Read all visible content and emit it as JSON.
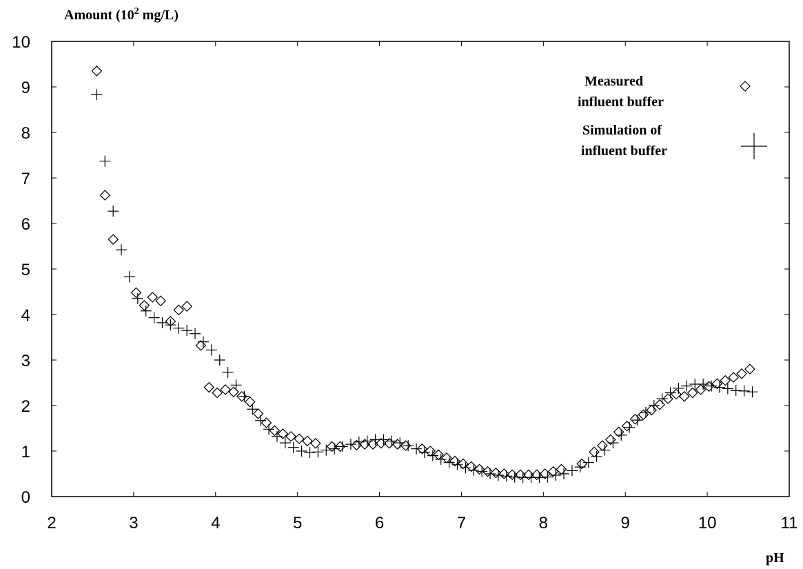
{
  "chart_data": {
    "type": "scatter",
    "ylabel": "Amount (10",
    "ylabel_sup": "2",
    "ylabel_unit": " mg/L)",
    "xlabel": "pH",
    "xlim": [
      2,
      11
    ],
    "ylim": [
      0,
      10
    ],
    "xticks": [
      2,
      3,
      4,
      5,
      6,
      7,
      8,
      9,
      10,
      11
    ],
    "yticks": [
      0,
      1,
      2,
      3,
      4,
      5,
      6,
      7,
      8,
      9,
      10
    ],
    "legend_position": "top-right",
    "series": [
      {
        "name": "Measured influent buffer",
        "legend_line1": "Measured",
        "legend_line2": "influent buffer",
        "marker": "diamond",
        "points": [
          [
            2.55,
            9.35
          ],
          [
            2.65,
            6.62
          ],
          [
            2.75,
            5.65
          ],
          [
            3.03,
            4.48
          ],
          [
            3.13,
            4.2
          ],
          [
            3.23,
            4.38
          ],
          [
            3.33,
            4.3
          ],
          [
            3.45,
            3.85
          ],
          [
            3.55,
            4.1
          ],
          [
            3.65,
            4.18
          ],
          [
            3.82,
            3.32
          ],
          [
            3.92,
            2.4
          ],
          [
            4.02,
            2.28
          ],
          [
            4.12,
            2.35
          ],
          [
            4.22,
            2.3
          ],
          [
            4.32,
            2.2
          ],
          [
            4.42,
            2.08
          ],
          [
            4.52,
            1.82
          ],
          [
            4.62,
            1.62
          ],
          [
            4.72,
            1.45
          ],
          [
            4.82,
            1.38
          ],
          [
            4.92,
            1.32
          ],
          [
            5.02,
            1.27
          ],
          [
            5.12,
            1.22
          ],
          [
            5.22,
            1.17
          ],
          [
            5.42,
            1.1
          ],
          [
            5.52,
            1.1
          ],
          [
            5.72,
            1.13
          ],
          [
            5.82,
            1.15
          ],
          [
            5.92,
            1.15
          ],
          [
            6.02,
            1.17
          ],
          [
            6.12,
            1.17
          ],
          [
            6.22,
            1.15
          ],
          [
            6.32,
            1.12
          ],
          [
            6.52,
            1.05
          ],
          [
            6.62,
            1.0
          ],
          [
            6.72,
            0.92
          ],
          [
            6.82,
            0.85
          ],
          [
            6.92,
            0.78
          ],
          [
            7.02,
            0.72
          ],
          [
            7.12,
            0.66
          ],
          [
            7.22,
            0.6
          ],
          [
            7.32,
            0.55
          ],
          [
            7.42,
            0.52
          ],
          [
            7.52,
            0.5
          ],
          [
            7.62,
            0.48
          ],
          [
            7.72,
            0.48
          ],
          [
            7.82,
            0.48
          ],
          [
            7.92,
            0.48
          ],
          [
            8.02,
            0.5
          ],
          [
            8.12,
            0.55
          ],
          [
            8.22,
            0.6
          ],
          [
            8.47,
            0.72
          ],
          [
            8.62,
            0.98
          ],
          [
            8.72,
            1.12
          ],
          [
            8.82,
            1.25
          ],
          [
            8.92,
            1.42
          ],
          [
            9.02,
            1.55
          ],
          [
            9.12,
            1.7
          ],
          [
            9.22,
            1.8
          ],
          [
            9.32,
            1.9
          ],
          [
            9.42,
            2.02
          ],
          [
            9.52,
            2.15
          ],
          [
            9.62,
            2.25
          ],
          [
            9.72,
            2.2
          ],
          [
            9.82,
            2.28
          ],
          [
            9.92,
            2.35
          ],
          [
            10.02,
            2.42
          ],
          [
            10.12,
            2.48
          ],
          [
            10.22,
            2.55
          ],
          [
            10.32,
            2.62
          ],
          [
            10.42,
            2.7
          ],
          [
            10.52,
            2.8
          ]
        ]
      },
      {
        "name": "Simulation of influent buffer",
        "legend_line1": "Simulation of",
        "legend_line2": "influent buffer",
        "marker": "plus",
        "points": [
          [
            2.55,
            8.83
          ],
          [
            2.65,
            7.37
          ],
          [
            2.75,
            6.27
          ],
          [
            2.85,
            5.42
          ],
          [
            2.95,
            4.83
          ],
          [
            3.05,
            4.35
          ],
          [
            3.15,
            4.08
          ],
          [
            3.25,
            3.93
          ],
          [
            3.35,
            3.82
          ],
          [
            3.45,
            3.77
          ],
          [
            3.55,
            3.7
          ],
          [
            3.65,
            3.65
          ],
          [
            3.75,
            3.58
          ],
          [
            3.85,
            3.4
          ],
          [
            3.95,
            3.22
          ],
          [
            4.05,
            3.0
          ],
          [
            4.15,
            2.73
          ],
          [
            4.25,
            2.45
          ],
          [
            4.35,
            2.2
          ],
          [
            4.45,
            1.92
          ],
          [
            4.55,
            1.67
          ],
          [
            4.65,
            1.48
          ],
          [
            4.75,
            1.32
          ],
          [
            4.85,
            1.18
          ],
          [
            4.95,
            1.08
          ],
          [
            5.05,
            1.0
          ],
          [
            5.15,
            0.97
          ],
          [
            5.25,
            0.98
          ],
          [
            5.35,
            1.02
          ],
          [
            5.45,
            1.05
          ],
          [
            5.55,
            1.1
          ],
          [
            5.65,
            1.15
          ],
          [
            5.75,
            1.2
          ],
          [
            5.85,
            1.22
          ],
          [
            5.95,
            1.25
          ],
          [
            6.05,
            1.25
          ],
          [
            6.15,
            1.22
          ],
          [
            6.25,
            1.18
          ],
          [
            6.35,
            1.12
          ],
          [
            6.45,
            1.05
          ],
          [
            6.55,
            0.97
          ],
          [
            6.65,
            0.9
          ],
          [
            6.75,
            0.82
          ],
          [
            6.85,
            0.75
          ],
          [
            6.95,
            0.7
          ],
          [
            7.05,
            0.63
          ],
          [
            7.15,
            0.58
          ],
          [
            7.25,
            0.55
          ],
          [
            7.35,
            0.5
          ],
          [
            7.45,
            0.47
          ],
          [
            7.55,
            0.45
          ],
          [
            7.65,
            0.43
          ],
          [
            7.75,
            0.42
          ],
          [
            7.85,
            0.42
          ],
          [
            7.95,
            0.42
          ],
          [
            8.05,
            0.43
          ],
          [
            8.15,
            0.47
          ],
          [
            8.25,
            0.5
          ],
          [
            8.35,
            0.57
          ],
          [
            8.45,
            0.65
          ],
          [
            8.55,
            0.75
          ],
          [
            8.65,
            0.88
          ],
          [
            8.75,
            1.02
          ],
          [
            8.85,
            1.18
          ],
          [
            8.95,
            1.35
          ],
          [
            9.05,
            1.52
          ],
          [
            9.15,
            1.68
          ],
          [
            9.25,
            1.85
          ],
          [
            9.35,
            2.0
          ],
          [
            9.45,
            2.15
          ],
          [
            9.55,
            2.28
          ],
          [
            9.65,
            2.38
          ],
          [
            9.75,
            2.43
          ],
          [
            9.85,
            2.47
          ],
          [
            9.95,
            2.47
          ],
          [
            10.05,
            2.43
          ],
          [
            10.15,
            2.4
          ],
          [
            10.25,
            2.37
          ],
          [
            10.35,
            2.33
          ],
          [
            10.45,
            2.32
          ],
          [
            10.55,
            2.3
          ]
        ]
      }
    ]
  }
}
